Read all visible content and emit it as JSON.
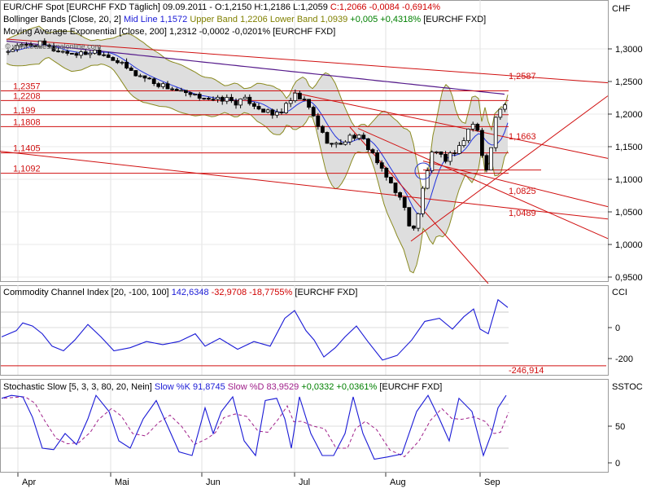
{
  "chart_data": {
    "type": "line",
    "currency_label": "CHF",
    "months": [
      "Apr",
      "Mai",
      "Jun",
      "Jul",
      "Aug",
      "Sep"
    ],
    "main": {
      "header": {
        "prefix": "EUR/CHF Spot [EURCHF FXD  Täglich] 09.09.2011 - O:1,2150 H:1,2186 L:1,2059 ",
        "close": "C:1,2066 -0,0084 -0,6914%"
      },
      "bollinger": {
        "label": "Bollinger Bands [Close, 20, 2]",
        "mid": "Mid Line 1,1572",
        "upper": "Upper Band 1,2206",
        "lower": "Lower Band 1,0939",
        "change": "+0,005 +0,4318%",
        "symbol": "[EURCHF FXD]"
      },
      "ema": {
        "label": "Moving Average Exponential [Close, 200] 1,2312 -0,0002 -0,0201% [EURCHF FXD]"
      },
      "watermark": "© www.tradesignalonline.com",
      "y_ticks": [
        "1,3000",
        "1,2500",
        "1,2000",
        "1,1500",
        "1,1000",
        "1,0500",
        "1,0000",
        "0,9500"
      ],
      "y_tick_values": [
        1.3,
        1.25,
        1.2,
        1.15,
        1.1,
        1.05,
        1.0,
        0.95
      ],
      "ylim": [
        0.93,
        1.34
      ],
      "levels_left": [
        {
          "label": "1,2357",
          "value": 1.2357
        },
        {
          "label": "1,2208",
          "value": 1.2208
        },
        {
          "label": "1,199",
          "value": 1.199
        },
        {
          "label": "1,1808",
          "value": 1.1808
        },
        {
          "label": "1,1405",
          "value": 1.1405
        },
        {
          "label": "1,1092",
          "value": 1.1092
        }
      ],
      "levels_right": [
        {
          "label": "1,2587",
          "value": 1.2587
        },
        {
          "label": "1,1663",
          "value": 1.1663
        },
        {
          "label": "1,0825",
          "value": 1.0825
        },
        {
          "label": "1,0489",
          "value": 1.0489
        }
      ]
    },
    "cci": {
      "header": {
        "label": "Commodity Channel Index [20, -100, 100] ",
        "value": "142,6348",
        "change": " -32,9708 -18,7755%",
        "symbol": " [EURCHF FXD]"
      },
      "axis_label": "CCI",
      "y_ticks": [
        "0",
        "-200"
      ],
      "y_tick_values": [
        0,
        -200
      ],
      "ylim": [
        -290,
        200
      ],
      "bands": [
        100,
        -100
      ],
      "min_label": "-246,914",
      "min_value": -246.914
    },
    "stoch": {
      "header": {
        "label": "Stochastic Slow [5, 3, 3, 80, 20, Nein] ",
        "k": "Slow %K 91,8745",
        "d": " Slow %D 83,9529",
        "change": " +0,0332 +0,0361%",
        "symbol": " [EURCHF FXD]"
      },
      "axis_label": "SSTOC",
      "y_ticks": [
        "50",
        "0"
      ],
      "y_tick_values": [
        50,
        0
      ],
      "ylim": [
        -12,
        100
      ],
      "bands": [
        80,
        20
      ]
    }
  }
}
